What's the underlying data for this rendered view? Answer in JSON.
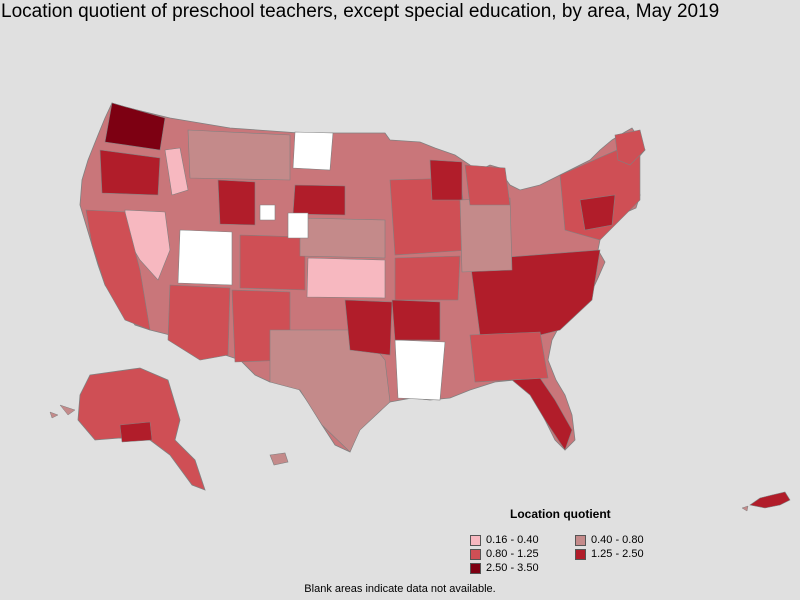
{
  "title": "Location quotient of preschool teachers, except special education, by area, May 2019",
  "legend": {
    "title": "Location quotient",
    "items": [
      {
        "label": "0.16 - 0.40",
        "color": "#f7b8c0"
      },
      {
        "label": "0.40 - 0.80",
        "color": "#c48a8a"
      },
      {
        "label": "0.80 - 1.25",
        "color": "#cf4f55"
      },
      {
        "label": "1.25 - 2.50",
        "color": "#b11d2a"
      },
      {
        "label": "2.50 - 3.50",
        "color": "#7d0012"
      }
    ]
  },
  "footnote": "Blank areas indicate data not available.",
  "colors": {
    "background": "#e0e0e0",
    "border": "#808080",
    "no_data": "#ffffff"
  }
}
